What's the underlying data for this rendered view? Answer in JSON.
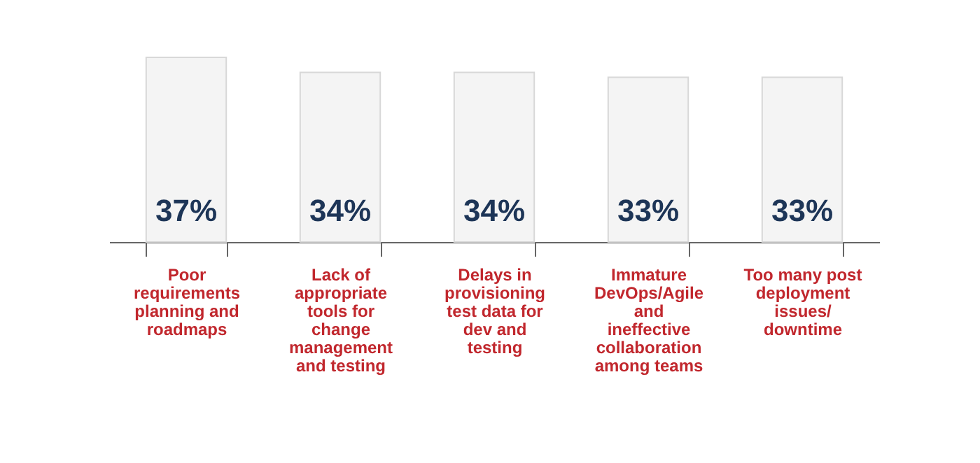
{
  "chart_data": {
    "type": "bar",
    "categories": [
      "Poor requirements planning and roadmaps",
      "Lack of appropriate tools for change management and testing",
      "Delays in provisioning test data for dev and testing",
      "Immature DevOps/Agile and ineffective collaboration among teams",
      "Too many post deployment issues/ downtime"
    ],
    "values": [
      37,
      34,
      34,
      33,
      33
    ],
    "value_labels": [
      "37%",
      "34%",
      "34%",
      "33%",
      "33%"
    ],
    "color": "#f4f4f4"
  }
}
